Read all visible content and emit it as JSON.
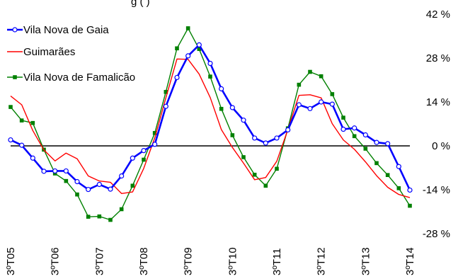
{
  "chart_data": {
    "type": "line",
    "title": "g                                                    (      )",
    "x": [
      "3ºT05",
      "4ºT05",
      "1ºT06",
      "2ºT06",
      "3ºT06",
      "4ºT06",
      "1ºT07",
      "2ºT07",
      "3ºT07",
      "4ºT07",
      "1ºT08",
      "2ºT08",
      "3ºT08",
      "4ºT08",
      "1ºT09",
      "2ºT09",
      "3ºT09",
      "4ºT09",
      "1ºT10",
      "2ºT10",
      "3ºT10",
      "4ºT10",
      "1ºT11",
      "2ºT11",
      "3ºT11",
      "4ºT11",
      "1ºT12",
      "2ºT12",
      "3ºT12",
      "4ºT12",
      "1ºT13",
      "2ºT13",
      "3ºT13",
      "4ºT13",
      "1ºT14",
      "2ºT14",
      "3ºT14"
    ],
    "x_tick_labels": [
      "3ºT05",
      "3ºT06",
      "3ºT07",
      "3ºT08",
      "3ºT09",
      "3ºT10",
      "3ºT11",
      "3ºT12",
      "3ºT13",
      "3ºT14"
    ],
    "y_ticks": [
      {
        "value": 42,
        "label": "42 %"
      },
      {
        "value": 28,
        "label": "28 %"
      },
      {
        "value": 14,
        "label": "14 %"
      },
      {
        "value": 0,
        "label": "0 %"
      },
      {
        "value": -14,
        "label": "-14 %"
      },
      {
        "value": -28,
        "label": "-28 %"
      }
    ],
    "ylim": [
      -28,
      42
    ],
    "legend_position": "top-left",
    "series": [
      {
        "name": "Vila Nova de Gaia",
        "color": "#0000ff",
        "marker": "circle",
        "values": [
          1.9,
          0.2,
          -3.9,
          -8.1,
          -8.0,
          -8.0,
          -11.4,
          -13.9,
          -12.3,
          -13.8,
          -9.6,
          -3.9,
          -1.5,
          0.5,
          12.6,
          21.8,
          28.7,
          32.2,
          26.3,
          18.2,
          12.2,
          8.2,
          2.5,
          0.9,
          2.5,
          5.1,
          13.1,
          11.9,
          14.0,
          13.3,
          5.3,
          5.7,
          3.5,
          1.1,
          0.7,
          -6.6,
          -14.1
        ]
      },
      {
        "name": "Guimarães",
        "color": "#ff0000",
        "marker": "none",
        "values": [
          15.9,
          13.1,
          4.9,
          -1.3,
          -4.8,
          -2.3,
          -4.1,
          -9.6,
          -11.2,
          -11.6,
          -15.2,
          -14.7,
          -7.2,
          2.6,
          15.3,
          27.7,
          27.6,
          22.9,
          15.4,
          5.2,
          -0.5,
          -5.5,
          -10.8,
          -10.1,
          -4.9,
          5.2,
          16.1,
          16.3,
          15.3,
          7.1,
          1.9,
          -1.1,
          -5.1,
          -9.5,
          -13.2,
          -15.5,
          -16.5
        ]
      },
      {
        "name": "Vila Nova de Famalicão",
        "color": "#008000",
        "marker": "square",
        "values": [
          12.4,
          8.1,
          7.3,
          -1.2,
          -8.8,
          -11.2,
          -15.5,
          -22.6,
          -22.5,
          -23.6,
          -20.2,
          -12.7,
          -4.4,
          4.1,
          17.2,
          31.1,
          37.5,
          30.9,
          22.1,
          11.8,
          3.4,
          -3.6,
          -9.2,
          -12.7,
          -7.3,
          5.6,
          19.5,
          23.6,
          22.2,
          16.5,
          9.0,
          3.1,
          -0.9,
          -5.5,
          -9.3,
          -13.5,
          -19.1
        ]
      }
    ]
  }
}
